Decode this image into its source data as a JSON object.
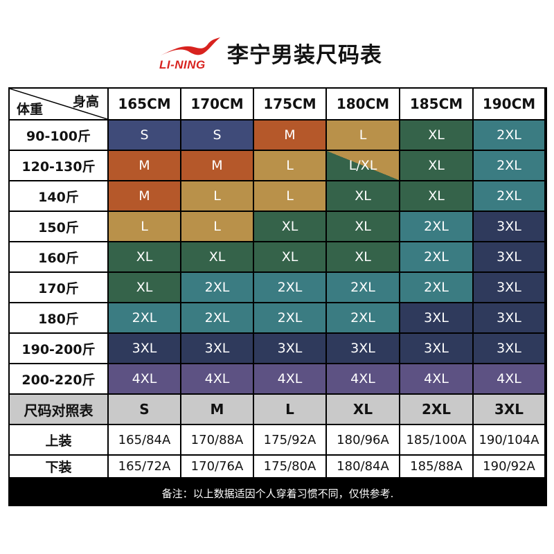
{
  "brand": {
    "logo_text": "LI-NING",
    "logo_color": "#d8231f"
  },
  "title": "李宁男装尺码表",
  "corner": {
    "height_label": "身高",
    "weight_label": "体重"
  },
  "heights": [
    "165CM",
    "170CM",
    "175CM",
    "180CM",
    "185CM",
    "190CM"
  ],
  "colors": {
    "S": "#3f4b79",
    "M": "#b5582a",
    "L": "#b9914a",
    "XL": "#35634a",
    "2XL": "#3b7c82",
    "3XL": "#2f3a5c",
    "4XL": "#5d5283"
  },
  "weights": [
    "90-100斤",
    "120-130斤",
    "140斤",
    "150斤",
    "160斤",
    "170斤",
    "180斤",
    "190-200斤",
    "200-220斤"
  ],
  "sizes": [
    [
      "S",
      "S",
      "M",
      "L",
      "XL",
      "2XL"
    ],
    [
      "M",
      "M",
      "L",
      "L/XL",
      "XL",
      "2XL"
    ],
    [
      "M",
      "L",
      "L",
      "XL",
      "XL",
      "2XL"
    ],
    [
      "L",
      "L",
      "XL",
      "XL",
      "2XL",
      "3XL"
    ],
    [
      "XL",
      "XL",
      "XL",
      "XL",
      "2XL",
      "3XL"
    ],
    [
      "XL",
      "2XL",
      "2XL",
      "2XL",
      "2XL",
      "3XL"
    ],
    [
      "2XL",
      "2XL",
      "2XL",
      "2XL",
      "3XL",
      "3XL"
    ],
    [
      "3XL",
      "3XL",
      "3XL",
      "3XL",
      "3XL",
      "3XL"
    ],
    [
      "4XL",
      "4XL",
      "4XL",
      "4XL",
      "4XL",
      "4XL"
    ]
  ],
  "comparison": {
    "label": "尺码对照表",
    "values": [
      "S",
      "M",
      "L",
      "XL",
      "2XL",
      "3XL"
    ]
  },
  "top": {
    "label": "上装",
    "values": [
      "165/84A",
      "170/88A",
      "175/92A",
      "180/96A",
      "185/100A",
      "190/104A"
    ]
  },
  "bottom": {
    "label": "下装",
    "values": [
      "165/72A",
      "170/76A",
      "175/80A",
      "180/84A",
      "185/88A",
      "190/92A"
    ]
  },
  "footer_note": "备注：以上数据适因个人穿着习惯不同，仅供参考."
}
